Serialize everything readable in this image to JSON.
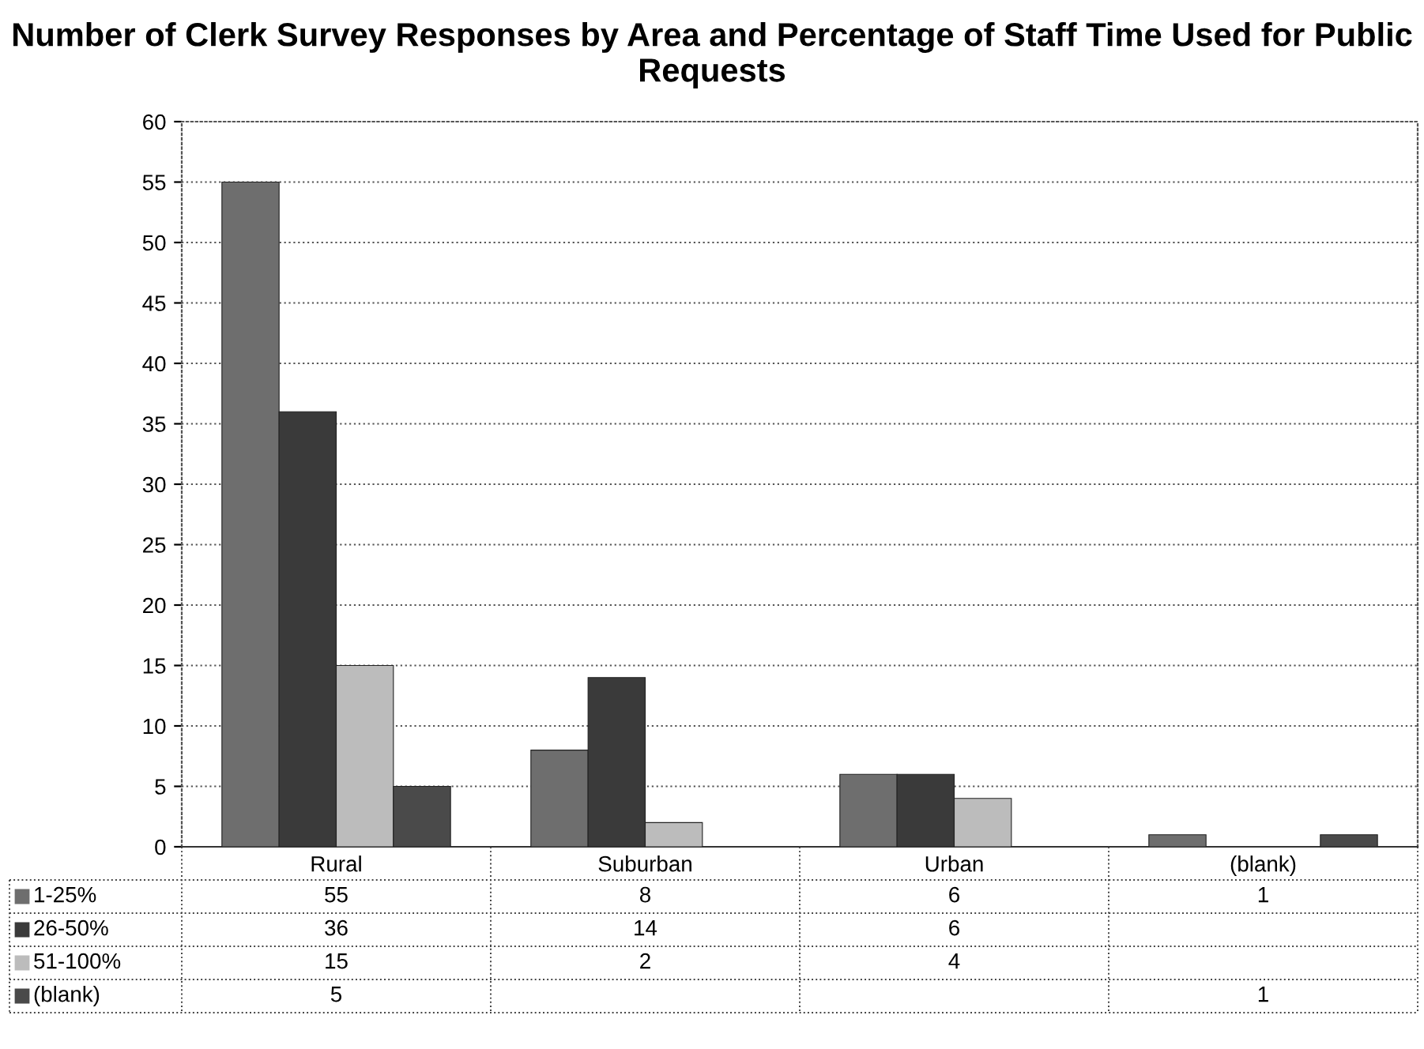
{
  "chart_data": {
    "type": "bar",
    "title": "Number of Clerk Survey Responses by Area and Percentage of Staff Time Used for Public Requests",
    "categories": [
      "Rural",
      "Suburban",
      "Urban",
      "(blank)"
    ],
    "series": [
      {
        "name": "1-25%",
        "color": "#6e6e6e",
        "values": [
          55,
          8,
          6,
          1
        ]
      },
      {
        "name": "26-50%",
        "color": "#3a3a3a",
        "values": [
          36,
          14,
          6,
          null
        ]
      },
      {
        "name": "51-100%",
        "color": "#bcbcbc",
        "values": [
          15,
          2,
          4,
          null
        ]
      },
      {
        "name": "(blank)",
        "color": "#4a4a4a",
        "values": [
          5,
          null,
          null,
          1
        ]
      }
    ],
    "ylim": [
      0,
      60
    ],
    "yticks": [
      0,
      5,
      10,
      15,
      20,
      25,
      30,
      35,
      40,
      45,
      50,
      55,
      60
    ],
    "grid": "y",
    "legend": "bottom left",
    "data_labels": true
  }
}
